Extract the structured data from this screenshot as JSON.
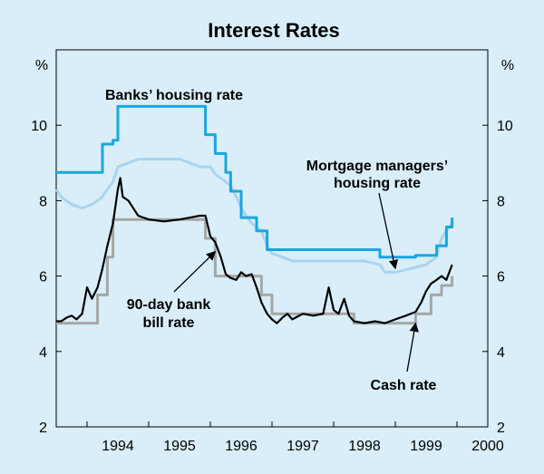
{
  "chart_data": {
    "type": "line",
    "title": "Interest Rates",
    "y_unit_left": "%",
    "y_unit_right": "%",
    "xlim": [
      1993.5,
      2000.5
    ],
    "ylim": [
      2,
      12
    ],
    "y_ticks": [
      2,
      4,
      6,
      8,
      10
    ],
    "x_ticks": [
      {
        "label": "1994",
        "at": 1994
      },
      {
        "label": "1995",
        "at": 1995
      },
      {
        "label": "1996",
        "at": 1996
      },
      {
        "label": "1997",
        "at": 1997
      },
      {
        "label": "1998",
        "at": 1998
      },
      {
        "label": "1999",
        "at": 1999
      },
      {
        "label": "2000",
        "at": 2000
      }
    ],
    "grid": false,
    "legend": "none",
    "series": [
      {
        "id": "mortgage",
        "color": "#a8d5ef",
        "step": false,
        "points": [
          [
            1993.5,
            8.3
          ],
          [
            1993.58,
            8.1
          ],
          [
            1993.75,
            7.9
          ],
          [
            1993.92,
            7.8
          ],
          [
            1994.08,
            7.9
          ],
          [
            1994.17,
            8.0
          ],
          [
            1994.25,
            8.1
          ],
          [
            1994.33,
            8.3
          ],
          [
            1994.42,
            8.5
          ],
          [
            1994.5,
            8.9
          ],
          [
            1994.67,
            9.0
          ],
          [
            1994.83,
            9.1
          ],
          [
            1995.0,
            9.1
          ],
          [
            1995.25,
            9.1
          ],
          [
            1995.5,
            9.1
          ],
          [
            1995.67,
            9.0
          ],
          [
            1995.83,
            8.9
          ],
          [
            1996.0,
            8.9
          ],
          [
            1996.08,
            8.7
          ],
          [
            1996.17,
            8.6
          ],
          [
            1996.33,
            8.4
          ],
          [
            1996.42,
            8.1
          ],
          [
            1996.5,
            7.8
          ],
          [
            1996.58,
            7.6
          ],
          [
            1996.67,
            7.4
          ],
          [
            1996.75,
            7.3
          ],
          [
            1996.83,
            7.2
          ],
          [
            1996.92,
            6.8
          ],
          [
            1997.0,
            6.6
          ],
          [
            1997.17,
            6.5
          ],
          [
            1997.33,
            6.4
          ],
          [
            1997.5,
            6.4
          ],
          [
            1998.0,
            6.4
          ],
          [
            1998.5,
            6.4
          ],
          [
            1998.75,
            6.3
          ],
          [
            1998.83,
            6.1
          ],
          [
            1999.0,
            6.1
          ],
          [
            1999.25,
            6.2
          ],
          [
            1999.5,
            6.3
          ],
          [
            1999.58,
            6.4
          ],
          [
            1999.67,
            6.5
          ],
          [
            1999.75,
            7.0
          ],
          [
            1999.83,
            7.2
          ],
          [
            1999.92,
            7.4
          ]
        ]
      },
      {
        "id": "banks",
        "color": "#1aa6e0",
        "step": true,
        "points": [
          [
            1993.5,
            8.75
          ],
          [
            1994.25,
            8.75
          ],
          [
            1994.25,
            9.5
          ],
          [
            1994.42,
            9.5
          ],
          [
            1994.42,
            9.6
          ],
          [
            1994.5,
            9.6
          ],
          [
            1994.5,
            10.5
          ],
          [
            1995.92,
            10.5
          ],
          [
            1995.92,
            9.75
          ],
          [
            1996.08,
            9.75
          ],
          [
            1996.08,
            9.25
          ],
          [
            1996.25,
            9.25
          ],
          [
            1996.25,
            8.75
          ],
          [
            1996.33,
            8.75
          ],
          [
            1996.33,
            8.25
          ],
          [
            1996.5,
            8.25
          ],
          [
            1996.5,
            7.55
          ],
          [
            1996.75,
            7.55
          ],
          [
            1996.75,
            7.2
          ],
          [
            1996.92,
            7.2
          ],
          [
            1996.92,
            6.7
          ],
          [
            1998.75,
            6.7
          ],
          [
            1998.75,
            6.5
          ],
          [
            1999.33,
            6.5
          ],
          [
            1999.33,
            6.55
          ],
          [
            1999.67,
            6.55
          ],
          [
            1999.67,
            6.8
          ],
          [
            1999.83,
            6.8
          ],
          [
            1999.83,
            7.3
          ],
          [
            1999.92,
            7.3
          ],
          [
            1999.92,
            7.55
          ]
        ]
      },
      {
        "id": "cash",
        "color": "#a6a6a6",
        "step": true,
        "points": [
          [
            1993.5,
            4.75
          ],
          [
            1994.17,
            4.75
          ],
          [
            1994.17,
            5.5
          ],
          [
            1994.33,
            5.5
          ],
          [
            1994.33,
            6.5
          ],
          [
            1994.42,
            6.5
          ],
          [
            1994.42,
            7.5
          ],
          [
            1995.92,
            7.5
          ],
          [
            1995.92,
            7.0
          ],
          [
            1996.08,
            7.0
          ],
          [
            1996.08,
            6.0
          ],
          [
            1996.83,
            6.0
          ],
          [
            1996.83,
            5.5
          ],
          [
            1997.0,
            5.5
          ],
          [
            1997.0,
            5.0
          ],
          [
            1998.33,
            5.0
          ],
          [
            1998.33,
            4.75
          ],
          [
            1999.33,
            4.75
          ],
          [
            1999.33,
            5.0
          ],
          [
            1999.58,
            5.0
          ],
          [
            1999.58,
            5.5
          ],
          [
            1999.75,
            5.5
          ],
          [
            1999.75,
            5.75
          ],
          [
            1999.92,
            5.75
          ],
          [
            1999.92,
            6.0
          ]
        ]
      },
      {
        "id": "bill",
        "color": "#000000",
        "step": false,
        "points": [
          [
            1993.5,
            4.8
          ],
          [
            1993.58,
            4.8
          ],
          [
            1993.67,
            4.9
          ],
          [
            1993.75,
            4.95
          ],
          [
            1993.83,
            4.85
          ],
          [
            1993.92,
            5.0
          ],
          [
            1994.0,
            5.7
          ],
          [
            1994.08,
            5.4
          ],
          [
            1994.17,
            5.7
          ],
          [
            1994.25,
            6.2
          ],
          [
            1994.33,
            6.8
          ],
          [
            1994.42,
            7.4
          ],
          [
            1994.5,
            8.3
          ],
          [
            1994.54,
            8.6
          ],
          [
            1994.58,
            8.1
          ],
          [
            1994.67,
            8.0
          ],
          [
            1994.75,
            7.8
          ],
          [
            1994.83,
            7.6
          ],
          [
            1995.0,
            7.5
          ],
          [
            1995.25,
            7.45
          ],
          [
            1995.5,
            7.5
          ],
          [
            1995.67,
            7.55
          ],
          [
            1995.83,
            7.6
          ],
          [
            1995.92,
            7.6
          ],
          [
            1996.0,
            7.05
          ],
          [
            1996.08,
            6.9
          ],
          [
            1996.17,
            6.5
          ],
          [
            1996.25,
            6.05
          ],
          [
            1996.33,
            5.95
          ],
          [
            1996.42,
            5.9
          ],
          [
            1996.5,
            6.1
          ],
          [
            1996.58,
            6.0
          ],
          [
            1996.67,
            6.05
          ],
          [
            1996.75,
            5.7
          ],
          [
            1996.83,
            5.3
          ],
          [
            1996.92,
            5.0
          ],
          [
            1997.0,
            4.85
          ],
          [
            1997.08,
            4.75
          ],
          [
            1997.17,
            4.9
          ],
          [
            1997.25,
            5.0
          ],
          [
            1997.33,
            4.85
          ],
          [
            1997.5,
            5.0
          ],
          [
            1997.67,
            4.95
          ],
          [
            1997.83,
            5.0
          ],
          [
            1997.92,
            5.7
          ],
          [
            1998.0,
            5.1
          ],
          [
            1998.08,
            5.0
          ],
          [
            1998.17,
            5.4
          ],
          [
            1998.25,
            4.95
          ],
          [
            1998.33,
            4.8
          ],
          [
            1998.5,
            4.75
          ],
          [
            1998.67,
            4.8
          ],
          [
            1998.83,
            4.75
          ],
          [
            1999.0,
            4.85
          ],
          [
            1999.17,
            4.95
          ],
          [
            1999.33,
            5.05
          ],
          [
            1999.42,
            5.3
          ],
          [
            1999.5,
            5.6
          ],
          [
            1999.58,
            5.8
          ],
          [
            1999.67,
            5.9
          ],
          [
            1999.75,
            6.0
          ],
          [
            1999.83,
            5.9
          ],
          [
            1999.92,
            6.3
          ]
        ]
      }
    ],
    "annotations": [
      {
        "id": "banks-label",
        "lines": [
          "Banks’ housing rate"
        ],
        "arrow": false
      },
      {
        "id": "mortgage-label",
        "lines": [
          "Mortgage managers’",
          "housing rate"
        ],
        "arrow": true,
        "arrow_to": [
          1999.0,
          6.2
        ]
      },
      {
        "id": "bill-label",
        "lines": [
          "90-day bank",
          "bill rate"
        ],
        "arrow": true,
        "arrow_to": [
          1996.08,
          6.65
        ]
      },
      {
        "id": "cash-label",
        "lines": [
          "Cash rate"
        ],
        "arrow": true,
        "arrow_to": [
          1999.33,
          4.75
        ]
      }
    ]
  }
}
